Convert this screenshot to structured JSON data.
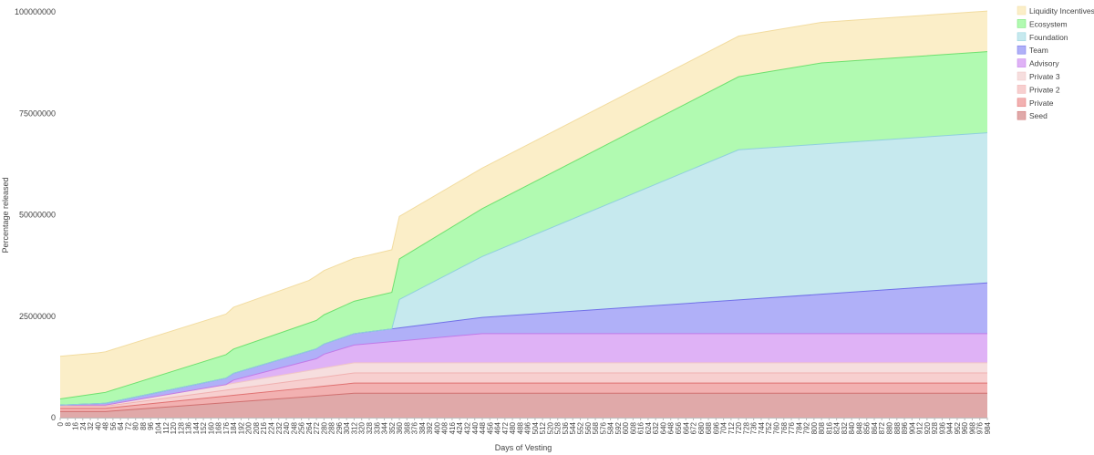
{
  "chart_data": {
    "type": "area",
    "stacked": true,
    "xlabel": "Days of Vesting",
    "ylabel": "Percentage released",
    "xlim": [
      0,
      984
    ],
    "ylim": [
      0,
      100000000
    ],
    "yticks": [
      0,
      25000000,
      50000000,
      75000000,
      100000000
    ],
    "ytick_labels": [
      "0",
      "25000000",
      "50000000",
      "75000000",
      "100000000"
    ],
    "xtick_step": 8,
    "legend_position": "right",
    "series": [
      {
        "name": "Seed",
        "color": "#e0a9a9",
        "stroke": "#d07070",
        "points": [
          [
            0,
            1500000
          ],
          [
            48,
            1500000
          ],
          [
            312,
            6000000
          ],
          [
            984,
            6000000
          ]
        ]
      },
      {
        "name": "Private",
        "color": "#f2b1b1",
        "stroke": "#e07070",
        "points": [
          [
            0,
            800000
          ],
          [
            48,
            800000
          ],
          [
            312,
            2500000
          ],
          [
            984,
            2500000
          ]
        ]
      },
      {
        "name": "Private 2",
        "color": "#f7cfcf",
        "stroke": "#f0b0b0",
        "points": [
          [
            0,
            500000
          ],
          [
            48,
            500000
          ],
          [
            312,
            2500000
          ],
          [
            984,
            2500000
          ]
        ]
      },
      {
        "name": "Private 3",
        "color": "#f6dede",
        "stroke": "#f0c6c6",
        "points": [
          [
            0,
            300000
          ],
          [
            48,
            300000
          ],
          [
            312,
            2500000
          ],
          [
            984,
            2500000
          ]
        ]
      },
      {
        "name": "Advisory",
        "color": "#dfb2f6",
        "stroke": "#c07ae8",
        "points": [
          [
            0,
            0
          ],
          [
            176,
            0
          ],
          [
            184,
            800000
          ],
          [
            272,
            2600000
          ],
          [
            280,
            3400000
          ],
          [
            312,
            4400000
          ],
          [
            448,
            7200000
          ],
          [
            984,
            7200000
          ]
        ]
      },
      {
        "name": "Team",
        "color": "#b0b0f8",
        "stroke": "#7070e8",
        "points": [
          [
            0,
            0
          ],
          [
            448,
            4000000
          ],
          [
            984,
            12500000
          ]
        ]
      },
      {
        "name": "Foundation",
        "color": "#c6e9ee",
        "stroke": "#8fd0dc",
        "points": [
          [
            0,
            0
          ],
          [
            352,
            0
          ],
          [
            360,
            7000000
          ],
          [
            448,
            15000000
          ],
          [
            720,
            37000000
          ],
          [
            984,
            37000000
          ]
        ]
      },
      {
        "name": "Ecosystem",
        "color": "#b1fab1",
        "stroke": "#6ee06e",
        "points": [
          [
            0,
            1500000
          ],
          [
            40,
            2500000
          ],
          [
            176,
            5800000
          ],
          [
            184,
            6000000
          ],
          [
            272,
            7000000
          ],
          [
            352,
            9000000
          ],
          [
            360,
            10000000
          ],
          [
            448,
            11800000
          ],
          [
            720,
            18000000
          ],
          [
            808,
            20000000
          ],
          [
            984,
            20000000
          ]
        ]
      },
      {
        "name": "Liquidity Incentives",
        "color": "#fbeec8",
        "stroke": "#f2dca0",
        "points": [
          [
            0,
            10500000
          ],
          [
            40,
            10000000
          ],
          [
            176,
            10000000
          ],
          [
            184,
            10300000
          ],
          [
            264,
            10500000
          ],
          [
            272,
            11000000
          ],
          [
            320,
            10500000
          ],
          [
            352,
            10500000
          ],
          [
            360,
            10500000
          ],
          [
            448,
            10000000
          ],
          [
            720,
            10000000
          ],
          [
            808,
            10000000
          ],
          [
            984,
            10000000
          ]
        ]
      }
    ]
  }
}
